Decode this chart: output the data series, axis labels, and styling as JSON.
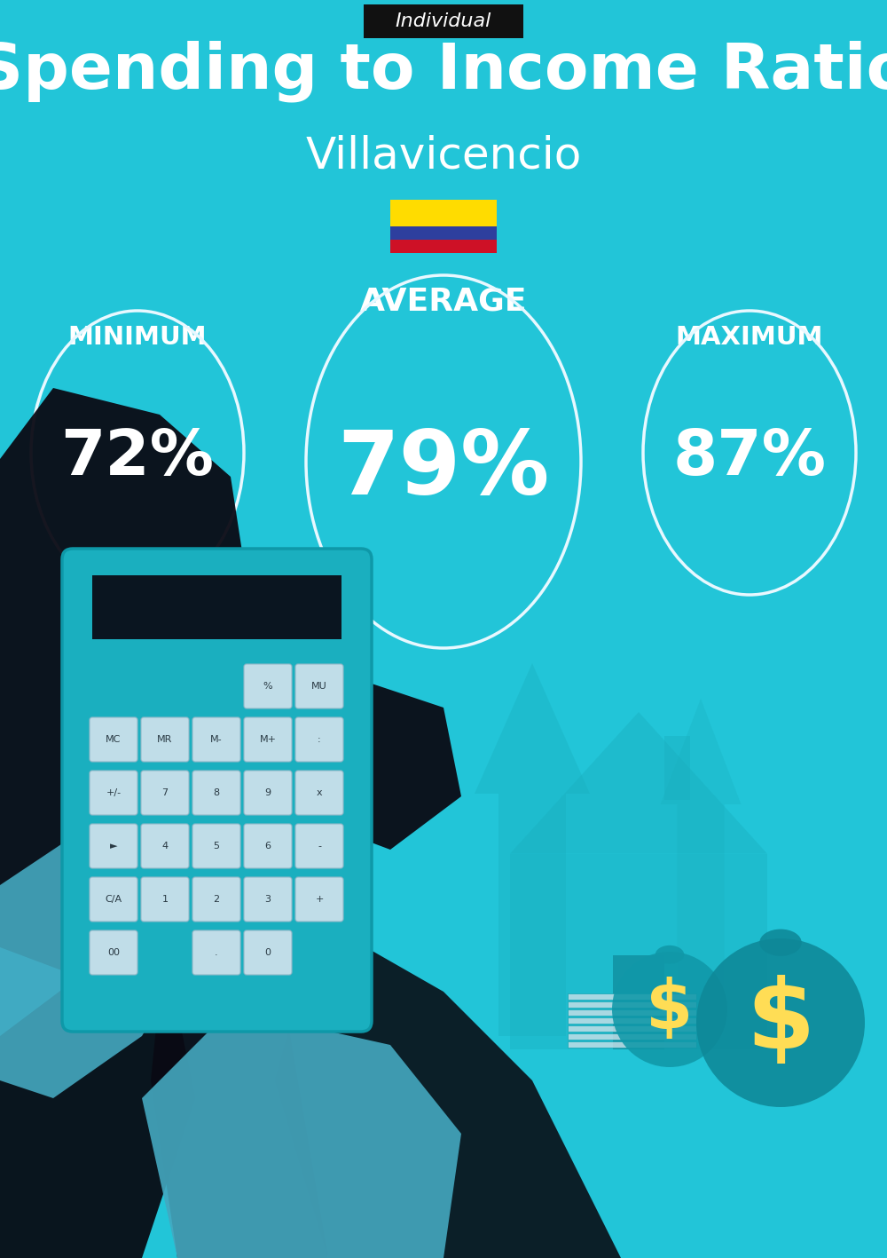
{
  "title": "Spending to Income Ratio",
  "subtitle": "Villavicencio",
  "tag": "Individual",
  "bg_color": "#22C5D8",
  "tag_bg_color": "#111111",
  "tag_text_color": "#ffffff",
  "title_color": "#ffffff",
  "subtitle_color": "#ffffff",
  "label_color": "#ffffff",
  "value_color": "#ffffff",
  "circle_edge_color": "#e8f8ff",
  "min_label": "MINIMUM",
  "avg_label": "AVERAGE",
  "max_label": "MAXIMUM",
  "min_value": "72%",
  "avg_value": "79%",
  "max_value": "87%",
  "flag_yellow": "#FFDC00",
  "flag_blue": "#2E3F9E",
  "flag_red": "#CE1126",
  "fig_w": 10.0,
  "fig_h": 14.17,
  "dpi": 100,
  "arrow_color": "#1AAFBF",
  "house_color": "#1AAFBF",
  "calc_body_color": "#1AAFBF",
  "calc_screen_color": "#0A1520",
  "btn_color": "#C0DDE8",
  "btn_edge_color": "#90B8C8",
  "hand_color": "#0A0A14",
  "cuff_color": "#44A8C0",
  "suit_color": "#080810"
}
